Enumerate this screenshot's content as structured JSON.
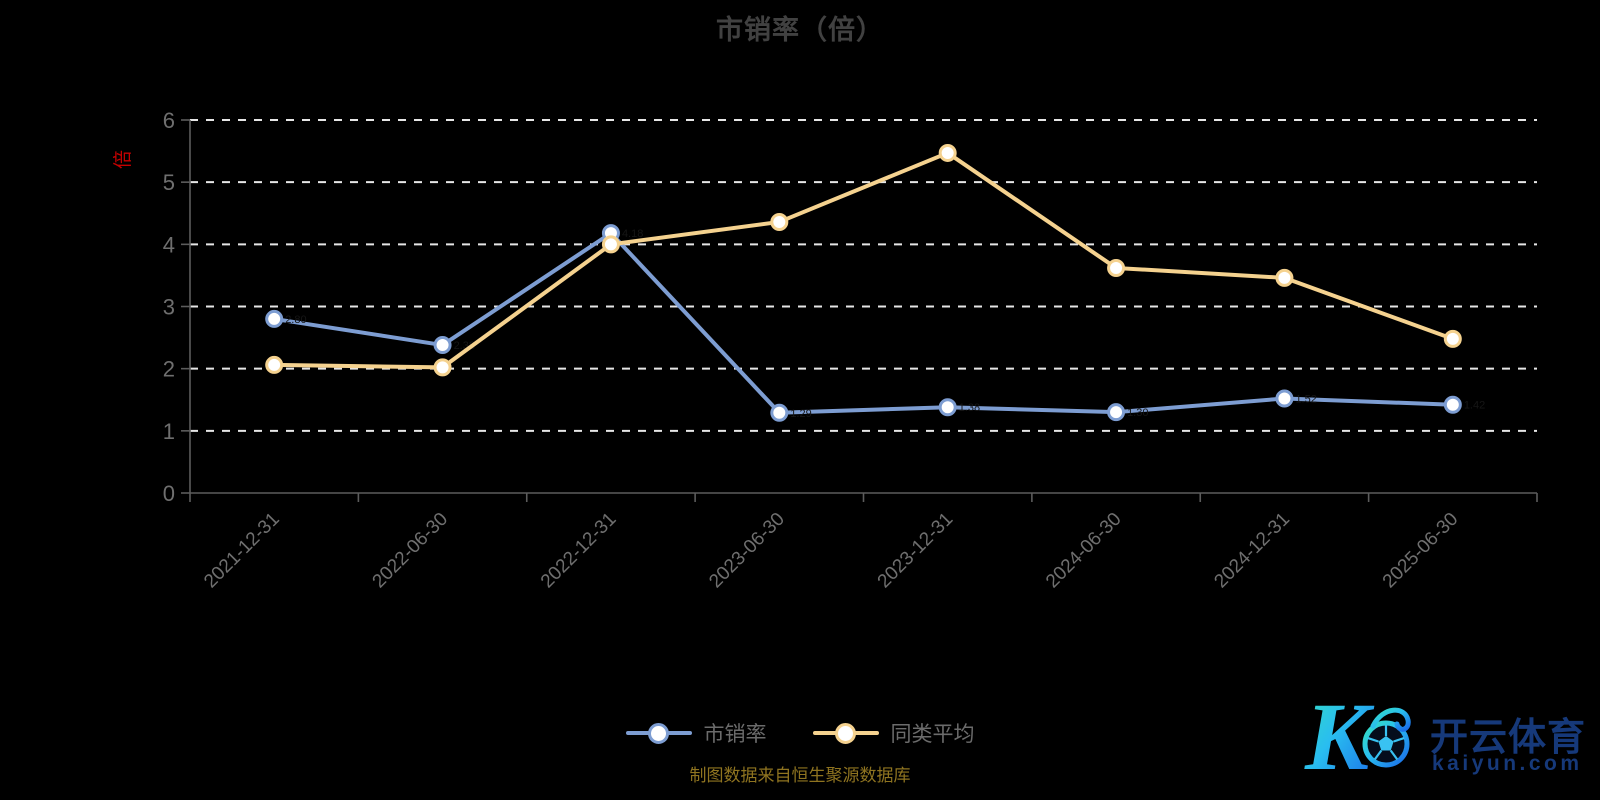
{
  "chart_data": {
    "type": "line",
    "title": "市销率（倍）",
    "categories": [
      "2021-12-31",
      "2022-06-30",
      "2022-12-31",
      "2023-06-30",
      "2023-12-31",
      "2024-06-30",
      "2024-12-31",
      "2025-06-30"
    ],
    "series": [
      {
        "name": "市销率",
        "color": "#7d9dd2",
        "marker": "circle-white-fill",
        "values": [
          2.8,
          2.38,
          4.18,
          1.29,
          1.38,
          1.3,
          1.52,
          1.42
        ]
      },
      {
        "name": "同类平均",
        "color": "#f5d28f",
        "marker": "circle-white-fill",
        "values": [
          2.06,
          2.02,
          4.0,
          4.36,
          5.47,
          3.62,
          3.46,
          2.48
        ]
      }
    ],
    "xlabel": "",
    "ylabel": "倍",
    "ylabel_color": "#c40000",
    "ylim": [
      0,
      6
    ],
    "ytick_step": 1,
    "x_label_rotation_deg": -45,
    "grid": "horizontal-dashed",
    "grid_color": "#e6e6e6",
    "axis_line_color": "#5c5c5c",
    "axis_label_color": "#6f6f6f",
    "background": "#000000",
    "legend_position": "bottom-center"
  },
  "footer": {
    "caption": "制图数据来自恒生聚源数据库",
    "caption_color": "#8f7420"
  },
  "watermark": {
    "brand": "开云体育",
    "domain": "kaiyun.com",
    "text_color": "#16397a",
    "logo_gradient_start": "#35e0c0",
    "logo_gradient_end": "#1a6ae8"
  }
}
